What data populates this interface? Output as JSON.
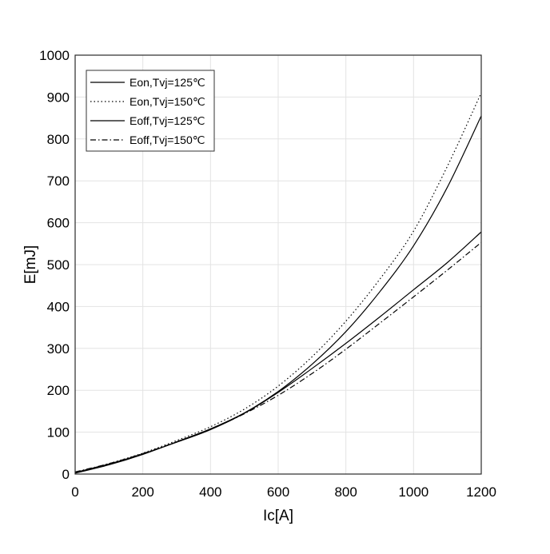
{
  "chart_data": {
    "type": "line",
    "xlabel": "Ic[A]",
    "ylabel": "E[mJ]",
    "xlim": [
      0,
      1200
    ],
    "ylim": [
      0,
      1000
    ],
    "xticks": [
      0,
      200,
      400,
      600,
      800,
      1000,
      1200
    ],
    "yticks": [
      0,
      100,
      200,
      300,
      400,
      500,
      600,
      700,
      800,
      900,
      1000
    ],
    "grid": true,
    "legend_position": "top-left",
    "series": [
      {
        "name": "Eon,Tvj=125℃",
        "dash": "solid",
        "x": [
          0,
          100,
          200,
          300,
          400,
          500,
          600,
          700,
          800,
          900,
          1000,
          1100,
          1200
        ],
        "y": [
          2,
          22,
          47,
          77,
          108,
          146,
          197,
          262,
          340,
          435,
          545,
          685,
          855
        ]
      },
      {
        "name": "Eon,Tvj=150℃",
        "dash": "dotted",
        "x": [
          0,
          100,
          200,
          300,
          400,
          500,
          600,
          700,
          800,
          900,
          1000,
          1100,
          1200
        ],
        "y": [
          3,
          25,
          50,
          80,
          113,
          155,
          210,
          280,
          365,
          465,
          580,
          735,
          910
        ]
      },
      {
        "name": "Eoff,Tvj=125℃",
        "dash": "solid",
        "x": [
          0,
          100,
          200,
          300,
          400,
          500,
          600,
          700,
          800,
          900,
          1000,
          1100,
          1200
        ],
        "y": [
          4,
          24,
          48,
          76,
          106,
          145,
          195,
          252,
          312,
          375,
          440,
          505,
          578
        ]
      },
      {
        "name": "Eoff,Tvj=150℃",
        "dash": "dashdot",
        "x": [
          0,
          100,
          200,
          300,
          400,
          500,
          600,
          700,
          800,
          900,
          1000,
          1100,
          1200
        ],
        "y": [
          5,
          25,
          49,
          77,
          107,
          144,
          188,
          240,
          298,
          360,
          423,
          487,
          553
        ]
      }
    ]
  }
}
